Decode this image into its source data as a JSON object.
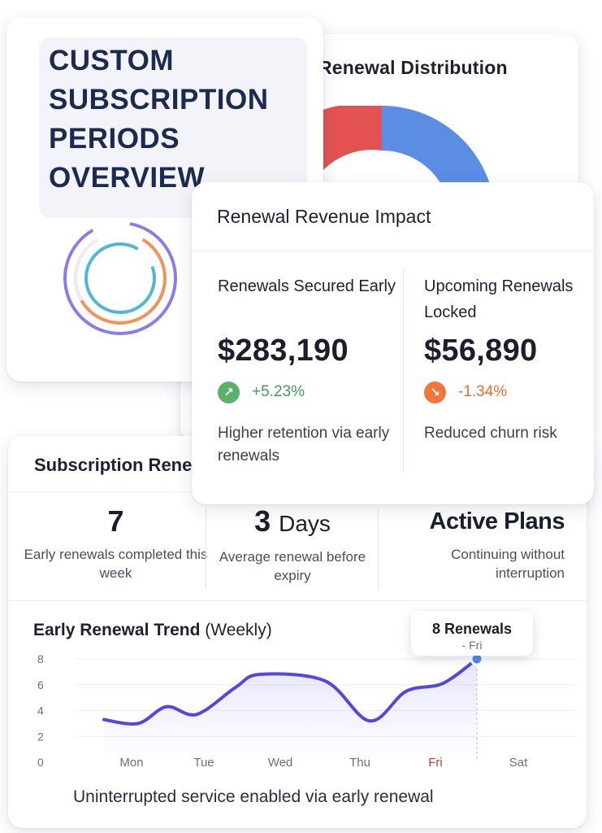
{
  "distribution": {
    "title": "Renewal Distribution",
    "colors": {
      "red": "#e25252",
      "blue": "#5b8de4"
    }
  },
  "overview": {
    "title": "CUSTOM SUBSCRIPTION PERIODS OVERVIEW",
    "ring_colors": [
      "#8f7be8",
      "#f0925b",
      "#4fb8d8"
    ]
  },
  "impact": {
    "title": "Renewal Revenue Impact",
    "left": {
      "label": "Renewals Secured Early",
      "amount": "$283,190",
      "change": "+5.23%",
      "direction_icon": "arrow-up-right-icon",
      "note": "Higher retention via early renewals"
    },
    "right": {
      "label": "Upcoming Renewals Locked",
      "amount": "$56,890",
      "change": "-1.34%",
      "direction_icon": "arrow-down-right-icon",
      "note": "Reduced churn risk"
    }
  },
  "subscription": {
    "title": "Subscription Renewals",
    "stats": [
      {
        "value": "7",
        "unit": "",
        "caption": "Early renewals completed this week"
      },
      {
        "value": "3",
        "unit": "Days",
        "caption": "Average renewal before expiry"
      },
      {
        "value": "Active Plans",
        "unit": "",
        "caption": "Continuing without interruption"
      }
    ],
    "trend": {
      "title_bold": "Early Renewal Trend",
      "title_rest": "(Weekly)",
      "tooltip_value": "8 Renewals",
      "tooltip_day": "- Fri",
      "caption": "Uninterrupted service enabled via early renewal"
    }
  },
  "chart_data": {
    "type": "line",
    "title": "Early Renewal Trend (Weekly)",
    "categories": [
      "Mon",
      "Tue",
      "Wed",
      "Thu",
      "Fri",
      "Sat"
    ],
    "highlight_category": "Fri",
    "y_ticks": [
      0,
      2,
      4,
      6,
      8
    ],
    "ylim": [
      0,
      8
    ],
    "grid": true,
    "line_color": "#5448dc",
    "points": [
      {
        "x": "Mon",
        "y": 3.3
      },
      {
        "x": "Mon",
        "y": 3.0
      },
      {
        "x": "Mon",
        "y": 4.3
      },
      {
        "x": "Tue",
        "y": 3.7
      },
      {
        "x": "Tue",
        "y": 5.8
      },
      {
        "x": "Wed",
        "y": 6.8
      },
      {
        "x": "Wed",
        "y": 6.3
      },
      {
        "x": "Thu",
        "y": 3.2
      },
      {
        "x": "Thu",
        "y": 5.5
      },
      {
        "x": "Fri",
        "y": 6.1
      },
      {
        "x": "Fri",
        "y": 8.0
      }
    ]
  }
}
